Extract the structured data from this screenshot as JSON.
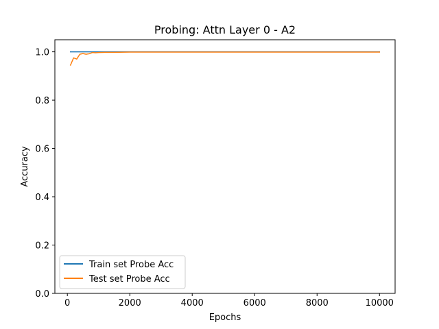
{
  "chart_data": {
    "type": "line",
    "title": "Probing: Attn Layer 0 - A2",
    "xlabel": "Epochs",
    "ylabel": "Accuracy",
    "xlim": [
      -400,
      10500
    ],
    "ylim": [
      0,
      1.05
    ],
    "xticks": [
      0,
      2000,
      4000,
      6000,
      8000,
      10000
    ],
    "xtick_labels": [
      "0",
      "2000",
      "4000",
      "6000",
      "8000",
      "10000"
    ],
    "yticks": [
      0.0,
      0.2,
      0.4,
      0.6,
      0.8,
      1.0
    ],
    "ytick_labels": [
      "0.0",
      "0.2",
      "0.4",
      "0.6",
      "0.8",
      "1.0"
    ],
    "grid": false,
    "legend_position": "lower-left",
    "series": [
      {
        "name": "Train set Probe Acc",
        "color": "#1f77b4",
        "x": [
          100,
          200,
          300,
          400,
          500,
          600,
          700,
          800,
          1000,
          1500,
          2000,
          3000,
          4000,
          5000,
          6000,
          7000,
          8000,
          9000,
          10000
        ],
        "y": [
          1.0,
          1.0,
          1.0,
          1.0,
          1.0,
          1.0,
          1.0,
          1.0,
          1.0,
          1.0,
          1.0,
          1.0,
          1.0,
          1.0,
          1.0,
          1.0,
          1.0,
          1.0,
          1.0
        ]
      },
      {
        "name": "Test set Probe Acc",
        "color": "#ff7f0e",
        "x": [
          100,
          200,
          300,
          400,
          500,
          600,
          700,
          800,
          900,
          1000,
          1200,
          1500,
          2000,
          3000,
          4000,
          5000,
          6000,
          7000,
          8000,
          9000,
          10000
        ],
        "y": [
          0.945,
          0.975,
          0.97,
          0.99,
          0.993,
          0.99,
          0.992,
          0.997,
          0.996,
          0.997,
          0.998,
          0.998,
          0.999,
          0.999,
          0.999,
          0.999,
          0.999,
          0.999,
          0.999,
          0.999,
          0.999
        ]
      }
    ]
  }
}
